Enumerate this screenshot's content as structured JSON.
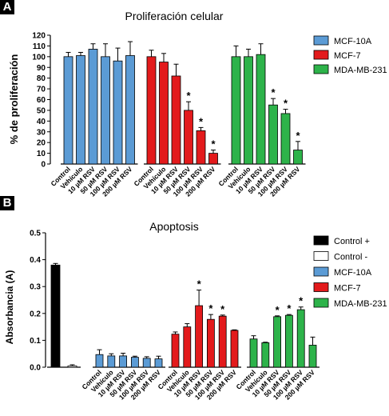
{
  "panels": {
    "a_label": "A",
    "b_label": "B"
  },
  "chart_data": [
    {
      "type": "bar",
      "title": "Proliferación celular",
      "ylabel": "% de proliferación",
      "ylim": [
        0,
        120
      ],
      "yticks": [
        0,
        10,
        20,
        30,
        40,
        50,
        60,
        70,
        80,
        90,
        100,
        110,
        120
      ],
      "categories": [
        "Control",
        "Vehículo",
        "10 µM RSV",
        "50 µM RSV",
        "100 µM RSV",
        "200 µM RSV"
      ],
      "legend_position": "right",
      "series": [
        {
          "name": "MCF-10A",
          "color": "#5b9bd5",
          "values": [
            100,
            101,
            107,
            100,
            96,
            101
          ],
          "errors": [
            4,
            3,
            5,
            12,
            12,
            13
          ],
          "significant": [
            false,
            false,
            false,
            false,
            false,
            false
          ]
        },
        {
          "name": "MCF-7",
          "color": "#e31a1c",
          "values": [
            100,
            95,
            82,
            50,
            31,
            10
          ],
          "errors": [
            6,
            8,
            11,
            8,
            3,
            3
          ],
          "significant": [
            false,
            false,
            false,
            true,
            true,
            true
          ]
        },
        {
          "name": "MDA-MB-231",
          "color": "#2db34a",
          "values": [
            100,
            100,
            102,
            55,
            47,
            13
          ],
          "errors": [
            10,
            7,
            10,
            6,
            4,
            8
          ],
          "significant": [
            false,
            false,
            false,
            true,
            true,
            true
          ]
        }
      ]
    },
    {
      "type": "bar",
      "title": "Apoptosis",
      "ylabel": "Absorbancia (A)",
      "ylim": [
        0,
        0.5
      ],
      "yticks": [
        "0.0",
        "0.1",
        "0.2",
        "0.3",
        "0.4",
        "0.5"
      ],
      "categories": [
        "Control",
        "Vehículo",
        "10 µM RSV",
        "50 µM RSV",
        "100 µM RSV",
        "200 µM RSV"
      ],
      "legend_position": "right",
      "controls": [
        {
          "name": "Control +",
          "color": "#000000",
          "value": 0.38,
          "error": 0.006
        },
        {
          "name": "Control -",
          "color": "#ffffff",
          "value": 0.005,
          "error": 0.004
        }
      ],
      "series": [
        {
          "name": "MCF-10A",
          "color": "#5b9bd5",
          "values": [
            0.047,
            0.042,
            0.042,
            0.037,
            0.033,
            0.031
          ],
          "errors": [
            0.018,
            0.008,
            0.01,
            0.004,
            0.006,
            0.01
          ],
          "significant": [
            false,
            false,
            false,
            false,
            false,
            false
          ]
        },
        {
          "name": "MCF-7",
          "color": "#e31a1c",
          "values": [
            0.123,
            0.15,
            0.229,
            0.178,
            0.19,
            0.137
          ],
          "errors": [
            0.008,
            0.012,
            0.058,
            0.018,
            0.004,
            0.002
          ],
          "significant": [
            false,
            false,
            true,
            true,
            true,
            false
          ]
        },
        {
          "name": "MDA-MB-231",
          "color": "#2db34a",
          "values": [
            0.105,
            0.091,
            0.188,
            0.193,
            0.214,
            0.082
          ],
          "errors": [
            0.012,
            0.002,
            0.003,
            0.003,
            0.01,
            0.03
          ],
          "significant": [
            false,
            false,
            true,
            true,
            true,
            false
          ]
        }
      ]
    }
  ]
}
